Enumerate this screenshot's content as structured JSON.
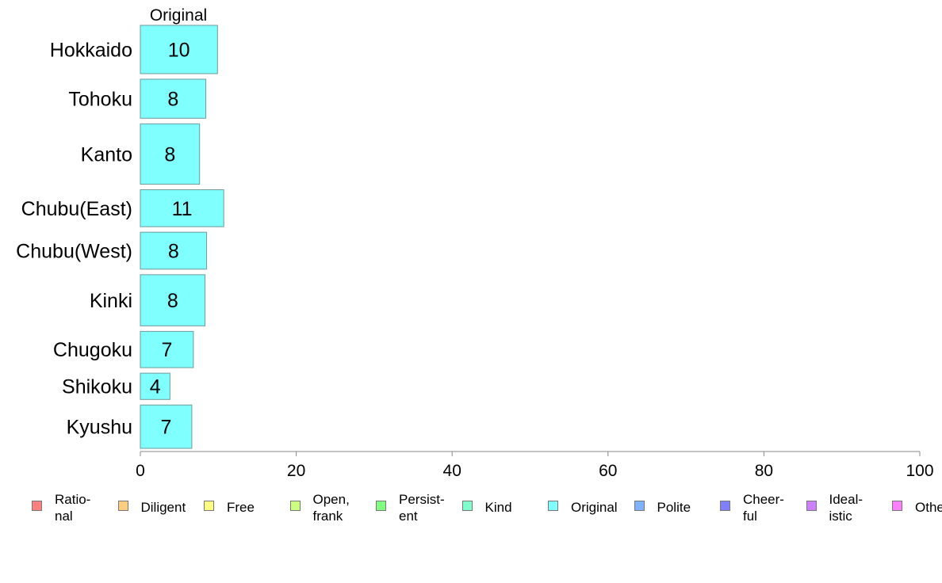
{
  "chart_data": {
    "type": "bar",
    "orientation": "horizontal",
    "column_header": "Original",
    "categories": [
      "Hokkaido",
      "Tohoku",
      "Kanto",
      "Chubu(East)",
      "Chubu(West)",
      "Kinki",
      "Chugoku",
      "Shikoku",
      "Kyushu"
    ],
    "values": [
      10,
      8,
      8,
      11,
      8,
      8,
      7,
      4,
      7
    ],
    "data_labels": [
      "10",
      "8",
      "8",
      "11",
      "8",
      "8",
      "7",
      "4",
      "7"
    ],
    "bar_lengths": [
      9.9,
      8.4,
      7.6,
      10.7,
      8.5,
      8.3,
      6.8,
      3.8,
      6.6
    ],
    "relative_bar_thickness": [
      0.68,
      0.55,
      0.85,
      0.52,
      0.52,
      0.72,
      0.51,
      0.37,
      0.61
    ],
    "xlim": [
      0,
      100
    ],
    "xticks": [
      0,
      20,
      40,
      60,
      80,
      100
    ],
    "grid": false,
    "series_color": "#80FFFF",
    "legend_position": "bottom",
    "legend": [
      {
        "label": "Ratio-\nnal",
        "color": "#FF8080"
      },
      {
        "label": "Diligent",
        "color": "#FFCC80"
      },
      {
        "label": "Free",
        "color": "#FFFF80"
      },
      {
        "label": "Open,\nfrank",
        "color": "#CCFF80"
      },
      {
        "label": "Persist-\nent",
        "color": "#80FF80"
      },
      {
        "label": "Kind",
        "color": "#80FFCC"
      },
      {
        "label": "Original",
        "color": "#80FFFF"
      },
      {
        "label": "Polite",
        "color": "#80B3FF"
      },
      {
        "label": "Cheer-\nful",
        "color": "#8080FF"
      },
      {
        "label": "Ideal-\nistic",
        "color": "#CC80FF"
      },
      {
        "label": "Other",
        "color": "#FF80FF"
      }
    ]
  }
}
